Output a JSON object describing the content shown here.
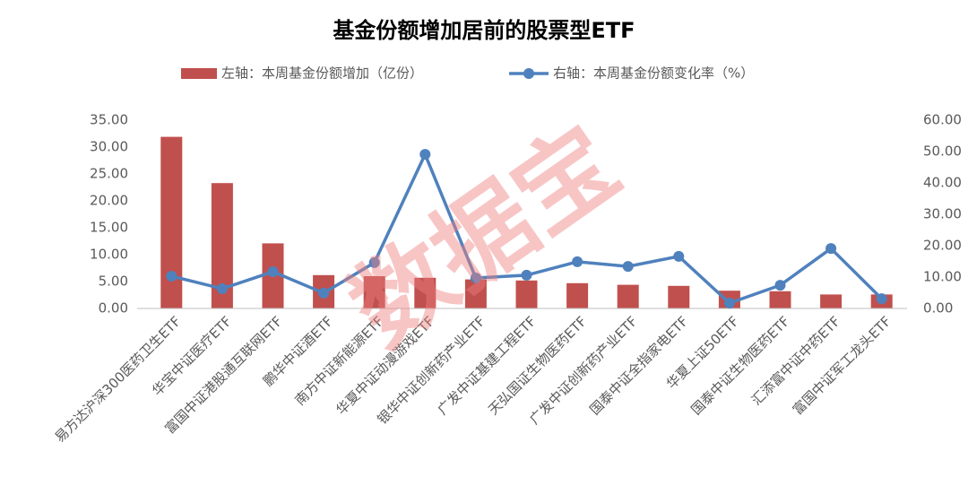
{
  "chart_data": {
    "type": "bar_line",
    "title": "基金份额增加居前的股票型ETF",
    "watermark": "数据宝",
    "categories": [
      "易方达沪深300医药卫生ETF",
      "华宝中证医疗ETF",
      "富国中证港股通互联网ETF",
      "鹏华中证酒ETF",
      "南方中证新能源ETF",
      "华夏中证动漫游戏ETF",
      "银华中证创新药产业ETF",
      "广发中证基建工程ETF",
      "天弘国证生物医药ETF",
      "广发中证创新药产业ETF",
      "国泰中证全指家电ETF",
      "华夏上证50ETF",
      "国泰中证生物医药ETF",
      "汇添富中证中药ETF",
      "富国中证军工龙头ETF"
    ],
    "series": [
      {
        "name": "左轴：本周基金份额增加（亿份）",
        "type": "bar",
        "color": "#c0504d",
        "values": [
          31.9,
          23.3,
          12.1,
          6.2,
          6.0,
          5.7,
          5.4,
          5.2,
          4.7,
          4.4,
          4.2,
          3.3,
          3.2,
          2.6,
          2.6
        ]
      },
      {
        "name": "右轴：本周基金份额变化率（%）",
        "type": "line",
        "axis": "y2",
        "color": "#4f81bd",
        "values": [
          10.3,
          6.3,
          11.7,
          4.9,
          14.6,
          49.1,
          9.7,
          10.6,
          14.9,
          13.4,
          16.6,
          1.7,
          7.4,
          19.1,
          3.1
        ]
      }
    ],
    "ylim": [
      0,
      35
    ],
    "yticks": [
      {
        "value": 0,
        "label": "0.00"
      },
      {
        "value": 5,
        "label": "5.00"
      },
      {
        "value": 10,
        "label": "10.00"
      },
      {
        "value": 15,
        "label": "15.00"
      },
      {
        "value": 20,
        "label": "20.00"
      },
      {
        "value": 25,
        "label": "25.00"
      },
      {
        "value": 30,
        "label": "30.00"
      },
      {
        "value": 35,
        "label": "35.00"
      }
    ],
    "y2lim": [
      0,
      60
    ],
    "y2ticks": [
      {
        "value": 0,
        "label": "0.00"
      },
      {
        "value": 10,
        "label": "10.00"
      },
      {
        "value": 20,
        "label": "20.00"
      },
      {
        "value": 30,
        "label": "30.00"
      },
      {
        "value": 40,
        "label": "40.00"
      },
      {
        "value": 50,
        "label": "50.00"
      },
      {
        "value": 60,
        "label": "60.00"
      }
    ],
    "legend": "top"
  }
}
